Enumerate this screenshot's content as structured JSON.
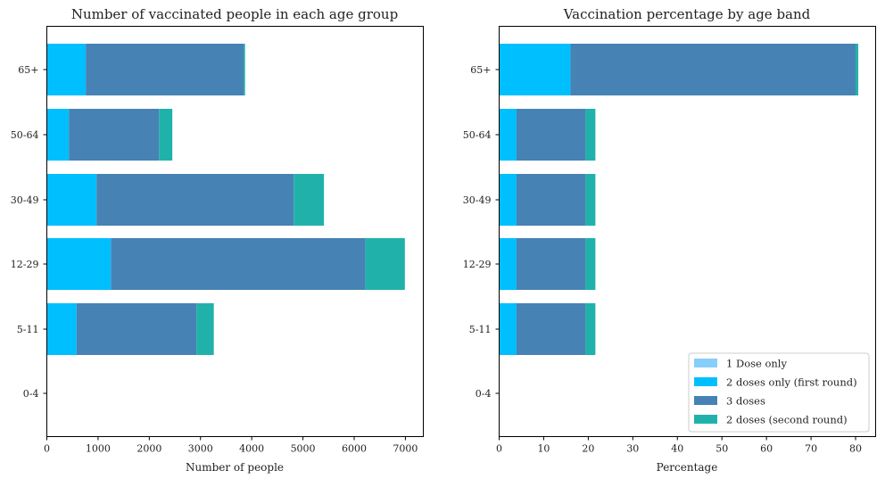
{
  "colors": {
    "dose1": "#87CEFA",
    "dose2_first": "#00BFFF",
    "dose3": "#4682B4",
    "dose2_second": "#20B2AA"
  },
  "chart_data": [
    {
      "type": "bar",
      "orientation": "horizontal",
      "stacked": true,
      "title": "Number of vaccinated people in each age group",
      "xlabel": "Number of people",
      "ylabel": "",
      "categories": [
        "0-4",
        "5-11",
        "12-29",
        "30-49",
        "50-64",
        "65+"
      ],
      "xlim": [
        0,
        7350
      ],
      "xticks": [
        0,
        1000,
        2000,
        3000,
        4000,
        5000,
        6000,
        7000
      ],
      "series": [
        {
          "name": "1 Dose only",
          "color": "#87CEFA",
          "values": [
            0,
            0,
            0,
            0,
            0,
            0
          ]
        },
        {
          "name": "2 doses only (first round)",
          "color": "#00BFFF",
          "values": [
            0,
            580,
            1250,
            970,
            430,
            760
          ]
        },
        {
          "name": "3 doses",
          "color": "#4682B4",
          "values": [
            0,
            2340,
            4970,
            3850,
            1760,
            3080
          ]
        },
        {
          "name": "2 doses (second round)",
          "color": "#20B2AA",
          "values": [
            0,
            340,
            770,
            590,
            260,
            30
          ]
        }
      ],
      "legend": null
    },
    {
      "type": "bar",
      "orientation": "horizontal",
      "stacked": true,
      "title": "Vaccination percentage by age band",
      "xlabel": "Percentage",
      "ylabel": "",
      "categories": [
        "0-4",
        "5-11",
        "12-29",
        "30-49",
        "50-64",
        "65+"
      ],
      "xlim": [
        0,
        84.5
      ],
      "xticks": [
        0,
        10,
        20,
        30,
        40,
        50,
        60,
        70,
        80
      ],
      "series": [
        {
          "name": "1 Dose only",
          "color": "#87CEFA",
          "values": [
            0,
            0,
            0,
            0,
            0,
            0
          ]
        },
        {
          "name": "2 doses only (first round)",
          "color": "#00BFFF",
          "values": [
            0,
            3.9,
            3.9,
            3.9,
            3.9,
            16.0
          ]
        },
        {
          "name": "3 doses",
          "color": "#4682B4",
          "values": [
            0,
            15.5,
            15.5,
            15.5,
            15.5,
            64.0
          ]
        },
        {
          "name": "2 doses (second round)",
          "color": "#20B2AA",
          "values": [
            0,
            2.2,
            2.2,
            2.2,
            2.2,
            0.6
          ]
        }
      ],
      "legend": {
        "position": "lower-right",
        "entries": [
          "1 Dose only",
          "2 doses only (first round)",
          "3 doses",
          "2 doses (second round)"
        ]
      }
    }
  ]
}
